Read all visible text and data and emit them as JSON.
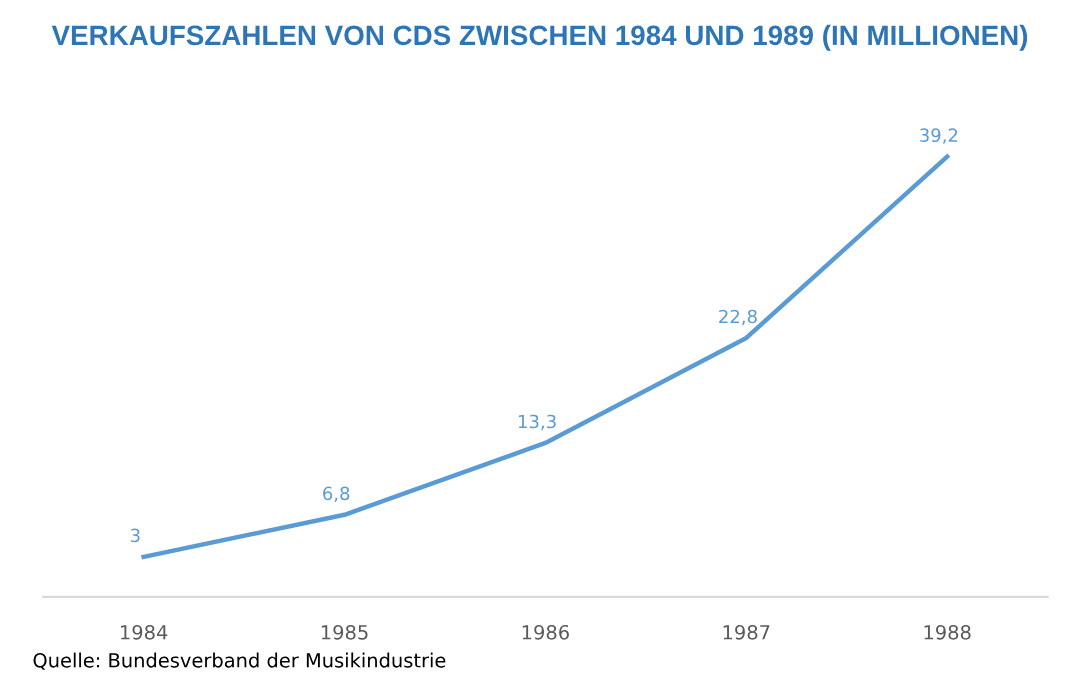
{
  "chart_data": {
    "type": "line",
    "title": "VERKAUFSZAHLEN VON CDS ZWISCHEN 1984 UND 1989 (IN MILLIONEN)",
    "categories": [
      "1984",
      "1985",
      "1986",
      "1987",
      "1988"
    ],
    "series": [
      {
        "color": "#5b9bd5",
        "values": [
          3,
          6.8,
          13.3,
          22.8,
          39.2
        ],
        "value_labels": [
          "3",
          "6,8",
          "13,3",
          "22,8",
          "39,2"
        ]
      }
    ],
    "tick_labels": "x",
    "line_style": "solid",
    "annotations": [
      "Quelle: Bundesverband der Musikindustrie"
    ]
  }
}
